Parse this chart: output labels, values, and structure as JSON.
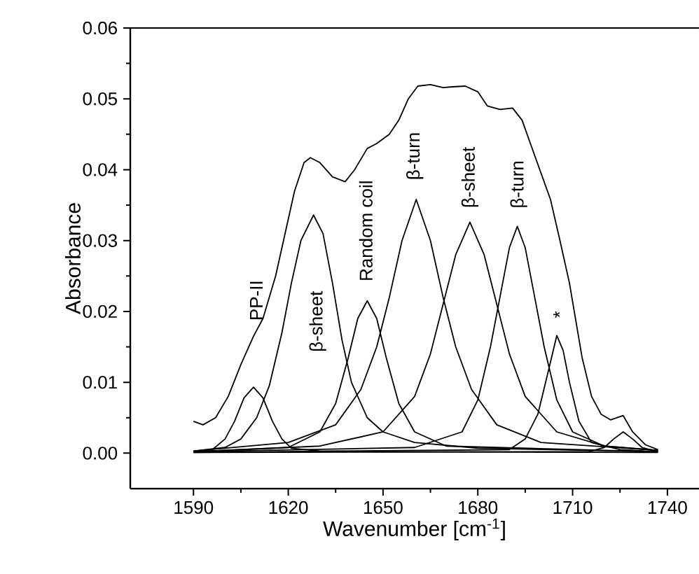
{
  "chart_data": {
    "type": "line",
    "xlabel": "Wavenumber [cm$^{-1}$]",
    "ylabel": "Absorbance",
    "xlim": [
      1570,
      1750
    ],
    "ylim": [
      -0.005,
      0.06
    ],
    "xticks": [
      1590,
      1620,
      1650,
      1680,
      1710,
      1740
    ],
    "yticks": [
      {
        "value": 0,
        "label": "0.00"
      },
      {
        "value": 0.01,
        "label": "0.01"
      },
      {
        "value": 0.02,
        "label": "0.02"
      },
      {
        "value": 0.03,
        "label": "0.03"
      },
      {
        "value": 0.04,
        "label": "0.04"
      },
      {
        "value": 0.05,
        "label": "0.05"
      },
      {
        "value": 0.06,
        "label": "0.06"
      }
    ],
    "series": [
      {
        "color": "#000000",
        "x": [
          1590,
          1593,
          1597,
          1601,
          1605,
          1609,
          1612,
          1616,
          1619,
          1622,
          1625,
          1627,
          1630,
          1634,
          1638,
          1641,
          1645,
          1648,
          1652,
          1655,
          1658,
          1661,
          1665,
          1669,
          1672,
          1676,
          1680,
          1683,
          1687,
          1691,
          1694,
          1698,
          1703,
          1706,
          1709,
          1713,
          1716,
          1719,
          1722,
          1726,
          1729,
          1733,
          1737
        ],
        "values": [
          0.0045,
          0.004,
          0.005,
          0.008,
          0.0125,
          0.0165,
          0.019,
          0.025,
          0.031,
          0.037,
          0.041,
          0.0417,
          0.041,
          0.039,
          0.0383,
          0.04,
          0.043,
          0.0437,
          0.045,
          0.047,
          0.05,
          0.0518,
          0.052,
          0.0516,
          0.0517,
          0.0518,
          0.051,
          0.049,
          0.0485,
          0.0487,
          0.047,
          0.042,
          0.0358,
          0.03,
          0.024,
          0.0135,
          0.008,
          0.0055,
          0.0047,
          0.0053,
          0.003,
          0.0012,
          0.0005
        ]
      },
      {
        "color": "#000000",
        "x": [
          1590,
          1596,
          1600,
          1603,
          1606,
          1609,
          1612,
          1615,
          1618,
          1621,
          1630,
          1650,
          1737
        ],
        "values": [
          0.0002,
          0.0005,
          0.002,
          0.0045,
          0.0078,
          0.0093,
          0.0078,
          0.0045,
          0.002,
          0.0007,
          0.0003,
          0.0002,
          0.0001
        ]
      },
      {
        "color": "#000000",
        "x": [
          1590,
          1600,
          1605,
          1610,
          1614,
          1618,
          1621,
          1624,
          1628,
          1631,
          1634,
          1637,
          1640,
          1645,
          1650,
          1660,
          1680,
          1737
        ],
        "values": [
          0.0003,
          0.0008,
          0.002,
          0.005,
          0.0095,
          0.017,
          0.024,
          0.03,
          0.0336,
          0.031,
          0.024,
          0.016,
          0.01,
          0.005,
          0.003,
          0.0015,
          0.0007,
          0.0002
        ]
      },
      {
        "color": "#000000",
        "x": [
          1590,
          1620,
          1630,
          1635,
          1639,
          1642,
          1645,
          1648,
          1651,
          1655,
          1660,
          1670,
          1737
        ],
        "values": [
          0.0002,
          0.0008,
          0.003,
          0.007,
          0.0135,
          0.019,
          0.0215,
          0.019,
          0.0135,
          0.007,
          0.003,
          0.001,
          0.0002
        ]
      },
      {
        "color": "#000000",
        "x": [
          1590,
          1620,
          1635,
          1643,
          1648,
          1652,
          1656,
          1660.5,
          1665,
          1669,
          1673,
          1678,
          1686,
          1700,
          1737
        ],
        "values": [
          0.0003,
          0.0015,
          0.004,
          0.009,
          0.015,
          0.022,
          0.03,
          0.0358,
          0.03,
          0.022,
          0.015,
          0.009,
          0.004,
          0.0015,
          0.0004
        ]
      },
      {
        "color": "#000000",
        "x": [
          1590,
          1630,
          1650,
          1660,
          1665,
          1669,
          1673,
          1677.5,
          1682,
          1686,
          1690,
          1695,
          1705,
          1720,
          1737
        ],
        "values": [
          0.0002,
          0.001,
          0.003,
          0.008,
          0.014,
          0.021,
          0.028,
          0.0326,
          0.028,
          0.021,
          0.014,
          0.008,
          0.003,
          0.001,
          0.0004
        ]
      },
      {
        "color": "#000000",
        "x": [
          1590,
          1660,
          1675,
          1680,
          1684,
          1687,
          1690,
          1692.5,
          1695,
          1698,
          1701,
          1705,
          1710,
          1720,
          1737
        ],
        "values": [
          0.0002,
          0.0008,
          0.003,
          0.0075,
          0.015,
          0.022,
          0.029,
          0.032,
          0.029,
          0.022,
          0.015,
          0.0075,
          0.003,
          0.001,
          0.0004
        ]
      },
      {
        "color": "#000000",
        "x": [
          1590,
          1690,
          1695,
          1699,
          1702,
          1705,
          1707,
          1709,
          1712,
          1716,
          1725,
          1737
        ],
        "values": [
          0.0001,
          0.0005,
          0.002,
          0.0055,
          0.011,
          0.0166,
          0.0145,
          0.01,
          0.0045,
          0.0015,
          0.0005,
          0.0002
        ]
      },
      {
        "color": "#000000",
        "x": [
          1590,
          1715,
          1720,
          1723,
          1726,
          1729,
          1732,
          1737
        ],
        "values": [
          0.0001,
          0.0002,
          0.0008,
          0.002,
          0.003,
          0.002,
          0.0008,
          0.0002
        ]
      }
    ],
    "annotations": [
      "PP-II",
      "β-sheet",
      "Random coil",
      "β-turn",
      "β-sheet",
      "β-turn",
      "*"
    ]
  }
}
